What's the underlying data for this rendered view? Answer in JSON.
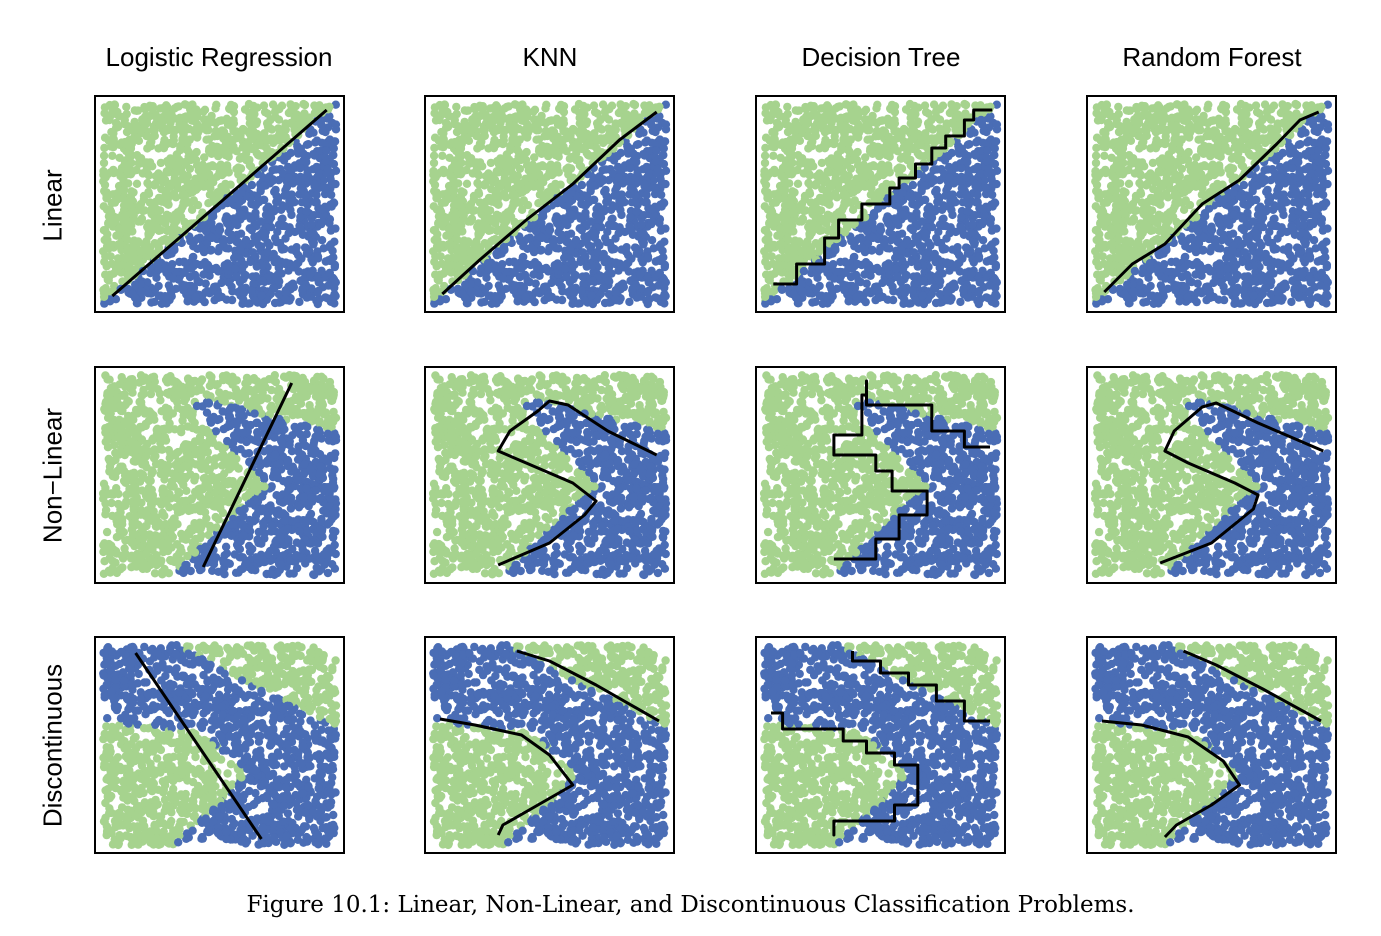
{
  "columns": [
    "Logistic Regression",
    "KNN",
    "Decision Tree",
    "Random Forest"
  ],
  "rows": [
    "Linear",
    "Non−Linear",
    "Discontinuous"
  ],
  "caption": "Figure 10.1:  Linear, Non-Linear, and Discontinuous Classification Problems.",
  "chart_data": {
    "type": "scatter",
    "classes": [
      {
        "color": "#a6d38e"
      },
      {
        "color": "#4a6db5"
      }
    ],
    "xlim": [
      0,
      1
    ],
    "ylim": [
      0,
      1
    ],
    "points_per_panel": 1700,
    "class_regions": {
      "Linear": "blue below the diagonal from (0.02,0.03) to (0.98,0.97)",
      "Non−Linear": "blue chevron region opening to the left",
      "Discontinuous": "blue band across the top plus right wedge; green bottom-left"
    },
    "boundaries": {
      "Linear": {
        "Logistic Regression": [
          [
            0.04,
            0.04
          ],
          [
            0.96,
            0.97
          ]
        ],
        "KNN": [
          [
            0.04,
            0.05
          ],
          [
            0.2,
            0.22
          ],
          [
            0.4,
            0.42
          ],
          [
            0.6,
            0.6
          ],
          [
            0.8,
            0.82
          ],
          [
            0.96,
            0.96
          ]
        ],
        "Decision Tree": [
          [
            0.04,
            0.1
          ],
          [
            0.14,
            0.1
          ],
          [
            0.14,
            0.2
          ],
          [
            0.26,
            0.2
          ],
          [
            0.26,
            0.33
          ],
          [
            0.32,
            0.33
          ],
          [
            0.32,
            0.42
          ],
          [
            0.42,
            0.42
          ],
          [
            0.42,
            0.5
          ],
          [
            0.54,
            0.5
          ],
          [
            0.54,
            0.58
          ],
          [
            0.58,
            0.58
          ],
          [
            0.58,
            0.63
          ],
          [
            0.65,
            0.63
          ],
          [
            0.65,
            0.7
          ],
          [
            0.72,
            0.7
          ],
          [
            0.72,
            0.78
          ],
          [
            0.78,
            0.78
          ],
          [
            0.78,
            0.84
          ],
          [
            0.86,
            0.84
          ],
          [
            0.86,
            0.92
          ],
          [
            0.9,
            0.92
          ],
          [
            0.9,
            0.97
          ],
          [
            0.98,
            0.97
          ]
        ],
        "Random Forest": [
          [
            0.04,
            0.06
          ],
          [
            0.16,
            0.2
          ],
          [
            0.3,
            0.3
          ],
          [
            0.46,
            0.5
          ],
          [
            0.62,
            0.62
          ],
          [
            0.78,
            0.8
          ],
          [
            0.88,
            0.92
          ],
          [
            0.96,
            0.96
          ]
        ]
      },
      "Non−Linear": {
        "Logistic Regression": [
          [
            0.43,
            0.04
          ],
          [
            0.81,
            0.96
          ]
        ],
        "KNN": [
          [
            0.28,
            0.05
          ],
          [
            0.5,
            0.16
          ],
          [
            0.65,
            0.3
          ],
          [
            0.7,
            0.37
          ],
          [
            0.6,
            0.46
          ],
          [
            0.4,
            0.56
          ],
          [
            0.28,
            0.62
          ],
          [
            0.33,
            0.72
          ],
          [
            0.45,
            0.82
          ],
          [
            0.5,
            0.87
          ],
          [
            0.58,
            0.85
          ],
          [
            0.75,
            0.72
          ],
          [
            0.96,
            0.6
          ]
        ],
        "Decision Tree": [
          [
            0.3,
            0.08
          ],
          [
            0.48,
            0.08
          ],
          [
            0.48,
            0.18
          ],
          [
            0.58,
            0.18
          ],
          [
            0.58,
            0.3
          ],
          [
            0.7,
            0.3
          ],
          [
            0.7,
            0.42
          ],
          [
            0.55,
            0.42
          ],
          [
            0.55,
            0.52
          ],
          [
            0.48,
            0.52
          ],
          [
            0.48,
            0.6
          ],
          [
            0.3,
            0.6
          ],
          [
            0.3,
            0.7
          ],
          [
            0.42,
            0.7
          ],
          [
            0.42,
            0.9
          ],
          [
            0.44,
            0.9
          ],
          [
            0.44,
            0.97
          ],
          [
            0.44,
            0.85
          ],
          [
            0.72,
            0.85
          ],
          [
            0.72,
            0.72
          ],
          [
            0.86,
            0.72
          ],
          [
            0.86,
            0.64
          ],
          [
            0.97,
            0.64
          ]
        ],
        "Random Forest": [
          [
            0.28,
            0.06
          ],
          [
            0.5,
            0.16
          ],
          [
            0.68,
            0.33
          ],
          [
            0.7,
            0.4
          ],
          [
            0.6,
            0.46
          ],
          [
            0.4,
            0.56
          ],
          [
            0.3,
            0.62
          ],
          [
            0.34,
            0.72
          ],
          [
            0.46,
            0.84
          ],
          [
            0.52,
            0.86
          ],
          [
            0.7,
            0.76
          ],
          [
            0.98,
            0.62
          ]
        ]
      },
      "Discontinuous": {
        "Logistic Regression": [
          [
            0.14,
            0.96
          ],
          [
            0.68,
            0.03
          ]
        ],
        "KNN": [
          [
            0.03,
            0.63
          ],
          [
            0.18,
            0.6
          ],
          [
            0.38,
            0.55
          ],
          [
            0.5,
            0.45
          ],
          [
            0.6,
            0.3
          ],
          [
            0.45,
            0.2
          ],
          [
            0.3,
            0.1
          ],
          [
            0.28,
            0.05
          ]
        ],
        "Decision Tree": [
          [
            0.03,
            0.66
          ],
          [
            0.08,
            0.66
          ],
          [
            0.08,
            0.58
          ],
          [
            0.34,
            0.58
          ],
          [
            0.34,
            0.52
          ],
          [
            0.44,
            0.52
          ],
          [
            0.44,
            0.46
          ],
          [
            0.56,
            0.46
          ],
          [
            0.56,
            0.4
          ],
          [
            0.66,
            0.4
          ],
          [
            0.66,
            0.2
          ],
          [
            0.56,
            0.2
          ],
          [
            0.56,
            0.12
          ],
          [
            0.3,
            0.12
          ],
          [
            0.3,
            0.05
          ],
          [
            0.3,
            0.12
          ]
        ],
        "Random Forest": [
          [
            0.03,
            0.62
          ],
          [
            0.2,
            0.6
          ],
          [
            0.4,
            0.54
          ],
          [
            0.55,
            0.42
          ],
          [
            0.62,
            0.3
          ],
          [
            0.5,
            0.2
          ],
          [
            0.35,
            0.1
          ],
          [
            0.3,
            0.04
          ]
        ]
      }
    },
    "upper_boundaries": {
      "Discontinuous": {
        "KNN": [
          [
            0.36,
            0.97
          ],
          [
            0.5,
            0.92
          ],
          [
            0.7,
            0.8
          ],
          [
            0.97,
            0.62
          ]
        ],
        "Decision Tree": [
          [
            0.38,
            0.97
          ],
          [
            0.38,
            0.92
          ],
          [
            0.5,
            0.92
          ],
          [
            0.5,
            0.86
          ],
          [
            0.62,
            0.86
          ],
          [
            0.62,
            0.8
          ],
          [
            0.74,
            0.8
          ],
          [
            0.74,
            0.72
          ],
          [
            0.86,
            0.72
          ],
          [
            0.86,
            0.62
          ],
          [
            0.97,
            0.62
          ]
        ],
        "Random Forest": [
          [
            0.38,
            0.97
          ],
          [
            0.52,
            0.9
          ],
          [
            0.72,
            0.78
          ],
          [
            0.97,
            0.62
          ]
        ]
      }
    }
  }
}
